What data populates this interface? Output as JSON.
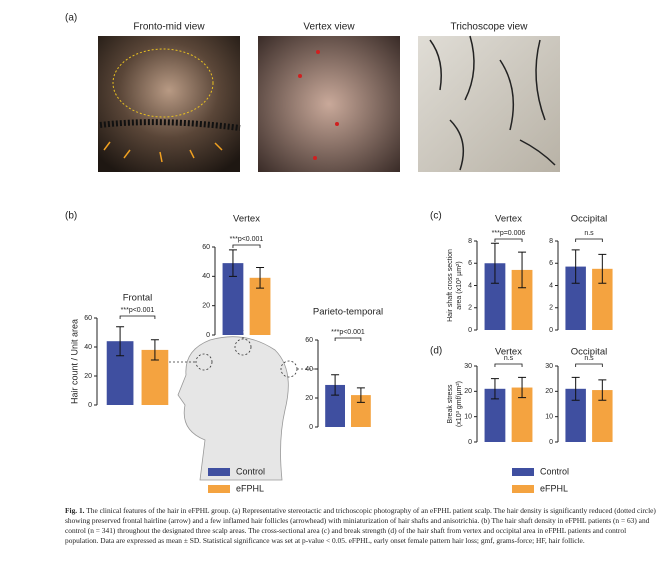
{
  "panels": {
    "a": "(a)",
    "b": "(b)",
    "c": "(c)",
    "d": "(d)"
  },
  "photos": [
    "Fronto-mid view",
    "Vertex view",
    "Trichoscope view"
  ],
  "chart_data": [
    {
      "type": "bar",
      "title": "Frontal",
      "ylabel": [
        "Hair count / Unit area"
      ],
      "ylim": [
        0,
        60
      ],
      "yticks": [
        0,
        20,
        40,
        60
      ],
      "annotation": "***p<0.001",
      "series": [
        {
          "name": "Control",
          "color": "#3f4fa0",
          "values": [
            44
          ],
          "errors": [
            10
          ]
        },
        {
          "name": "eFPHL",
          "color": "#f4a340",
          "values": [
            38
          ],
          "errors": [
            7
          ]
        }
      ]
    },
    {
      "type": "bar",
      "title": "Vertex",
      "ylim": [
        0,
        60
      ],
      "yticks": [
        0,
        20,
        40,
        60
      ],
      "annotation": "***p<0.001",
      "series": [
        {
          "name": "Control",
          "color": "#3f4fa0",
          "values": [
            49
          ],
          "errors": [
            9
          ]
        },
        {
          "name": "eFPHL",
          "color": "#f4a340",
          "values": [
            39
          ],
          "errors": [
            7
          ]
        }
      ]
    },
    {
      "type": "bar",
      "title": "Parieto-temporal",
      "ylim": [
        0,
        60
      ],
      "yticks": [
        0,
        20,
        40,
        60
      ],
      "annotation": "***p<0.001",
      "series": [
        {
          "name": "Control",
          "color": "#3f4fa0",
          "values": [
            29
          ],
          "errors": [
            7
          ]
        },
        {
          "name": "eFPHL",
          "color": "#f4a340",
          "values": [
            22
          ],
          "errors": [
            5
          ]
        }
      ]
    },
    {
      "type": "bar",
      "title": "Vertex",
      "ylabel": [
        "Hair shaft cross section",
        "area (x10³ µm²)"
      ],
      "ylim": [
        0,
        8
      ],
      "yticks": [
        0,
        2,
        4,
        6,
        8
      ],
      "annotation": "***p=0.006",
      "series": [
        {
          "name": "Control",
          "color": "#3f4fa0",
          "values": [
            6.0
          ],
          "errors": [
            1.8
          ]
        },
        {
          "name": "eFPHL",
          "color": "#f4a340",
          "values": [
            5.4
          ],
          "errors": [
            1.6
          ]
        }
      ]
    },
    {
      "type": "bar",
      "title": "Occipital",
      "ylim": [
        0,
        8
      ],
      "yticks": [
        0,
        2,
        4,
        6,
        8
      ],
      "annotation": "n.s",
      "series": [
        {
          "name": "Control",
          "color": "#3f4fa0",
          "values": [
            5.7
          ],
          "errors": [
            1.5
          ]
        },
        {
          "name": "eFPHL",
          "color": "#f4a340",
          "values": [
            5.5
          ],
          "errors": [
            1.3
          ]
        }
      ]
    },
    {
      "type": "bar",
      "title": "Vertex",
      "ylabel": [
        "Break stress",
        "(x10³ gmf/µm²)"
      ],
      "ylim": [
        0,
        30
      ],
      "yticks": [
        0,
        10,
        20,
        30
      ],
      "annotation": "n.s",
      "series": [
        {
          "name": "Control",
          "color": "#3f4fa0",
          "values": [
            21
          ],
          "errors": [
            4
          ]
        },
        {
          "name": "eFPHL",
          "color": "#f4a340",
          "values": [
            21.5
          ],
          "errors": [
            4
          ]
        }
      ]
    },
    {
      "type": "bar",
      "title": "Occipital",
      "ylim": [
        0,
        30
      ],
      "yticks": [
        0,
        10,
        20,
        30
      ],
      "annotation": "n.s",
      "series": [
        {
          "name": "Control",
          "color": "#3f4fa0",
          "values": [
            21
          ],
          "errors": [
            4.5
          ]
        },
        {
          "name": "eFPHL",
          "color": "#f4a340",
          "values": [
            20.5
          ],
          "errors": [
            4
          ]
        }
      ]
    }
  ],
  "caption": {
    "label": "Fig. 1.",
    "text": "The clinical features of the hair in eFPHL group. (a) Representative stereotactic and trichoscopic photography of an eFPHL patient scalp. The hair density is significantly reduced (dotted circle) showing preserved frontal hairline (arrow) and a few inflamed hair follicles (arrowhead) with miniaturization of hair shafts and anisotrichia. (b) The hair shaft density in eFPHL patients (n = 63) and control (n = 341) throughout the designated three scalp areas. The cross-sectional area (c) and break strength (d) of the hair shaft from vertex and occipital area in eFPHL patients and control population. Data are expressed as mean ± SD. Statistical significance was set at p-value < 0.05. eFPHL, early onset female pattern hair loss; gmf, grams-force; HF, hair follicle."
  }
}
